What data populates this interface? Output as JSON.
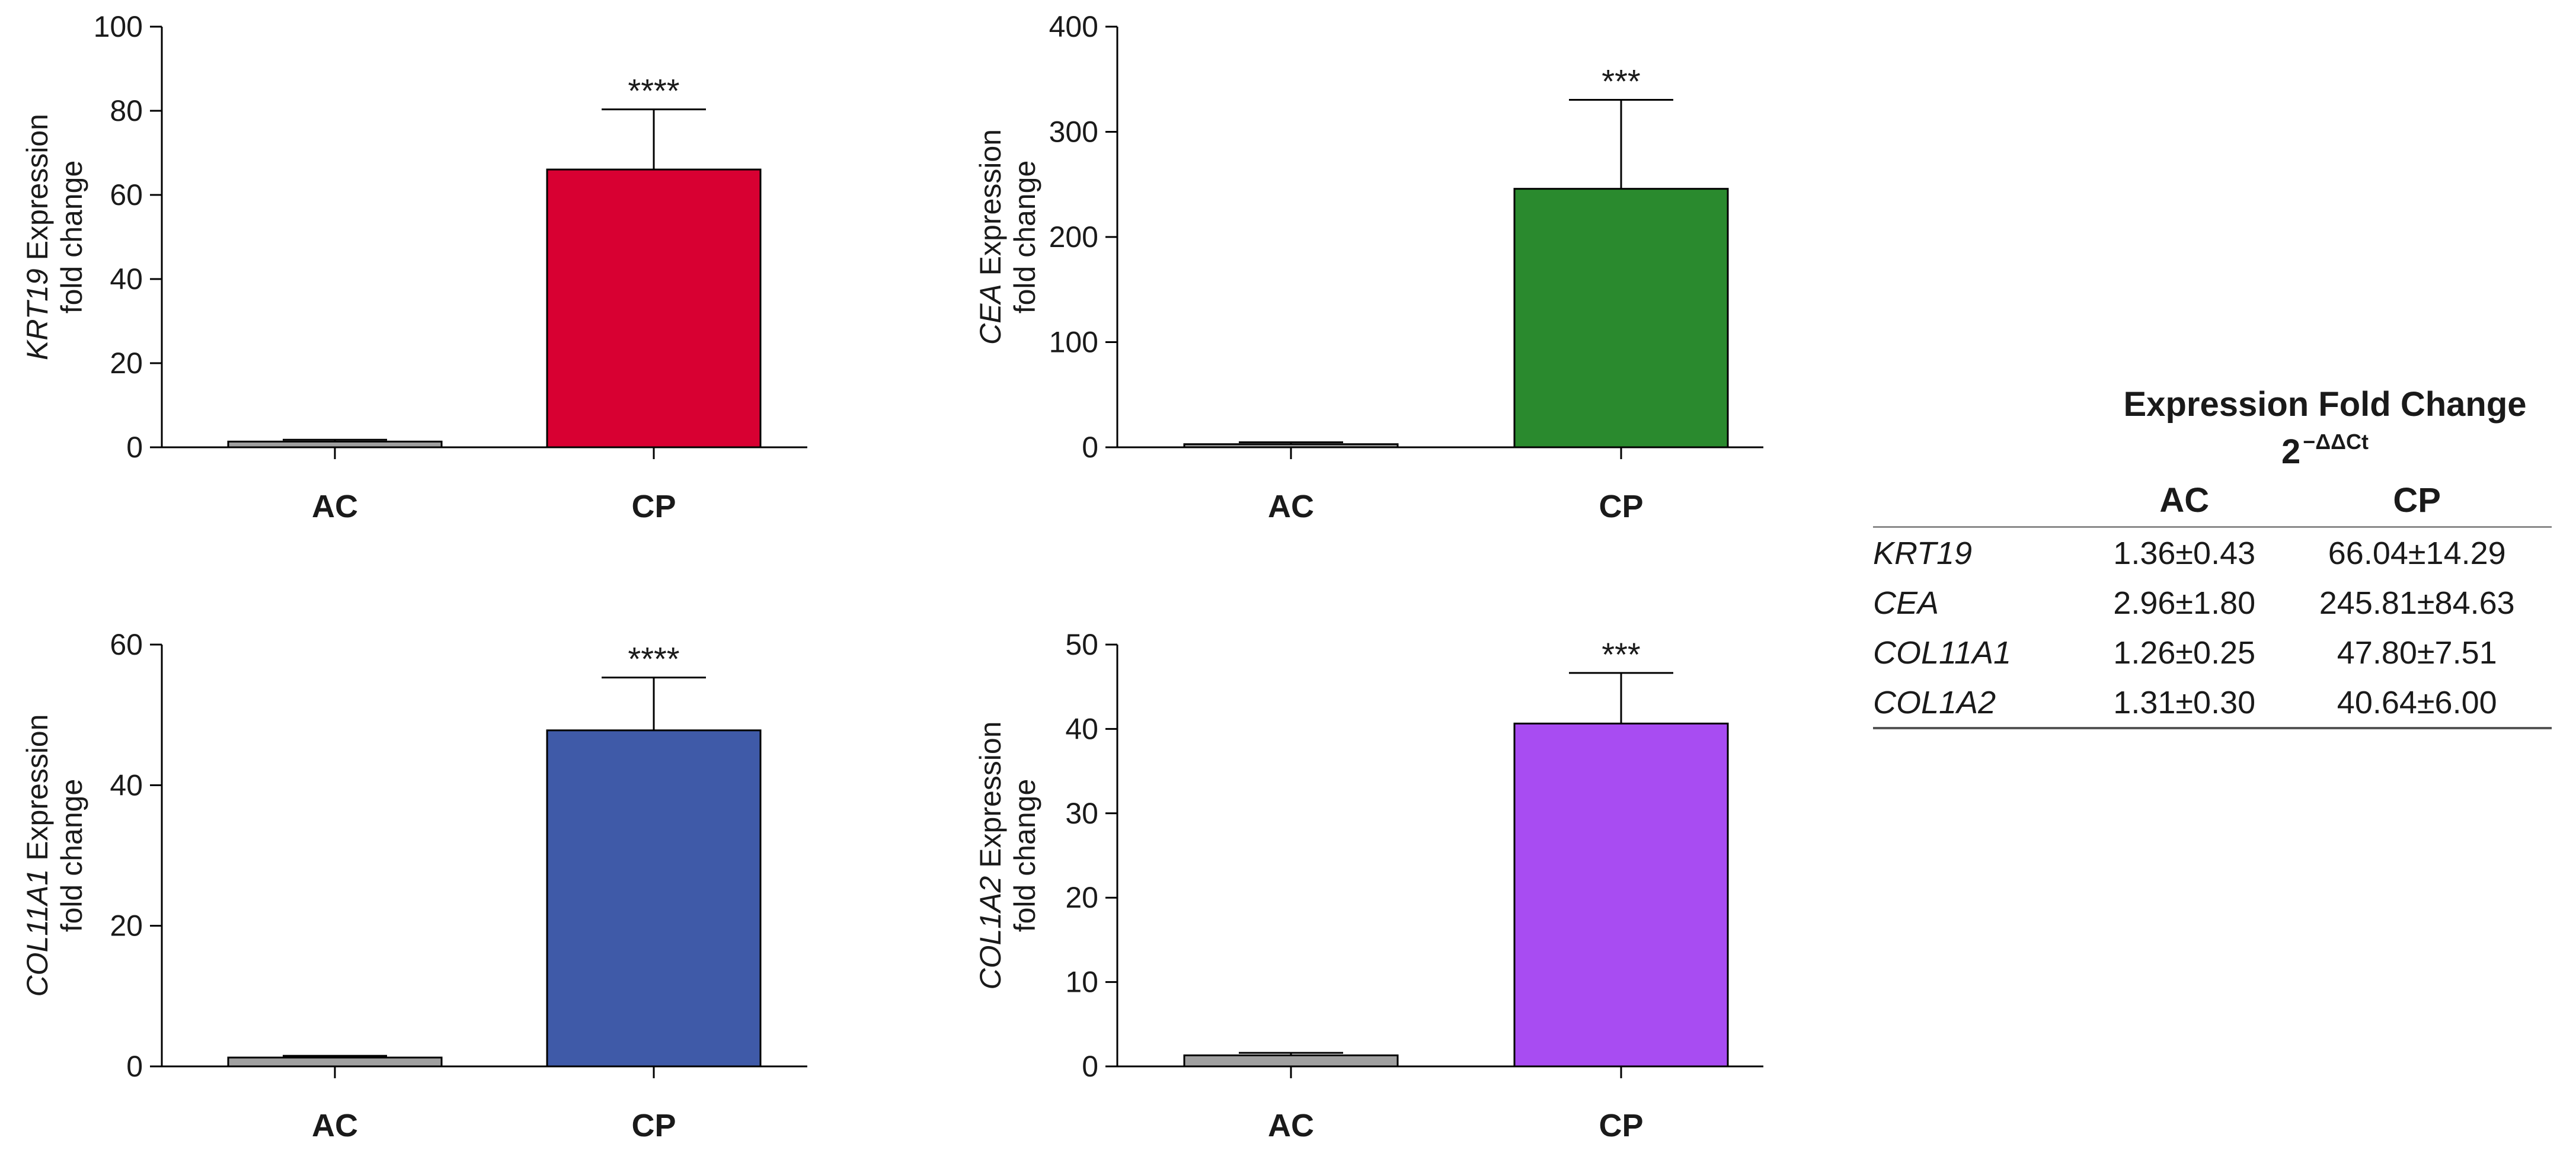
{
  "chart_data": [
    {
      "type": "bar",
      "panel": "top-left",
      "gene": "KRT19",
      "ylabel_suffix": " Expression",
      "ylabel_line2": "fold change",
      "categories": [
        "AC",
        "CP"
      ],
      "values": [
        1.36,
        66.04
      ],
      "errors": [
        0.43,
        14.29
      ],
      "colors": [
        "#a0a0a0",
        "#d80032"
      ],
      "significance": "****",
      "ylim": [
        0,
        100
      ],
      "yticks": [
        "0",
        "20",
        "40",
        "60",
        "80",
        "100"
      ]
    },
    {
      "type": "bar",
      "panel": "top-middle",
      "gene": "CEA",
      "ylabel_suffix": " Expression",
      "ylabel_line2": "fold change",
      "categories": [
        "AC",
        "CP"
      ],
      "values": [
        2.96,
        245.81
      ],
      "errors": [
        1.8,
        84.63
      ],
      "colors": [
        "#a0a0a0",
        "#2a8a2e"
      ],
      "significance": "***",
      "ylim": [
        0,
        400
      ],
      "yticks": [
        "0",
        "100",
        "200",
        "300",
        "400"
      ]
    },
    {
      "type": "bar",
      "panel": "bottom-left",
      "gene": "COL11A1",
      "ylabel_suffix": " Expression",
      "ylabel_line2": "fold change",
      "categories": [
        "AC",
        "CP"
      ],
      "values": [
        1.26,
        47.8
      ],
      "errors": [
        0.25,
        7.51
      ],
      "colors": [
        "#a0a0a0",
        "#3f5aa8"
      ],
      "significance": "****",
      "ylim": [
        0,
        60
      ],
      "yticks": [
        "0",
        "20",
        "40",
        "60"
      ]
    },
    {
      "type": "bar",
      "panel": "bottom-middle",
      "gene": "COL1A2",
      "ylabel_suffix": " Expression",
      "ylabel_line2": "fold change",
      "categories": [
        "AC",
        "CP"
      ],
      "values": [
        1.31,
        40.64
      ],
      "errors": [
        0.3,
        6.0
      ],
      "colors": [
        "#a0a0a0",
        "#a84cf2"
      ],
      "significance": "***",
      "ylim": [
        0,
        50
      ],
      "yticks": [
        "0",
        "10",
        "20",
        "30",
        "40",
        "50"
      ]
    }
  ],
  "table": {
    "title": "Expression Fold Change",
    "subtitle_base": "2",
    "subtitle_exp": "−ΔΔCt",
    "columns": [
      "AC",
      "CP"
    ],
    "rows": [
      {
        "gene": "KRT19",
        "ac": "1.36±0.43",
        "cp": "66.04±14.29"
      },
      {
        "gene": "CEA",
        "ac": "2.96±1.80",
        "cp": "245.81±84.63"
      },
      {
        "gene": "COL11A1",
        "ac": "1.26±0.25",
        "cp": "47.80±7.51"
      },
      {
        "gene": "COL1A2",
        "ac": "1.31±0.30",
        "cp": "40.64±6.00"
      }
    ]
  }
}
